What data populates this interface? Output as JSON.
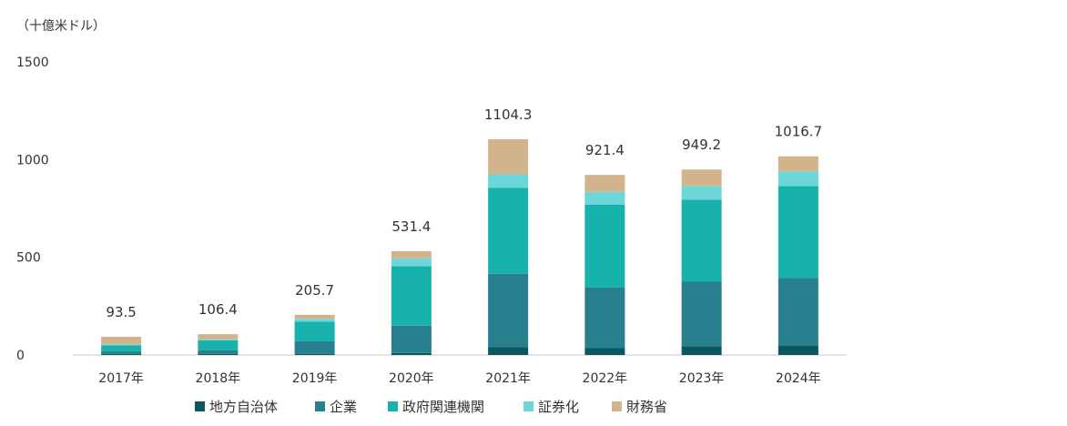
{
  "chart_data": {
    "type": "bar",
    "stacked": true,
    "unit_label": "（十億米ドル）",
    "categories": [
      "2017年",
      "2018年",
      "2019年",
      "2020年",
      "2021年",
      "2022年",
      "2023年",
      "2024年"
    ],
    "totals": [
      "93.5",
      "106.4",
      "205.7",
      "531.4",
      "1104.3",
      "921.4",
      "949.2",
      "1016.7"
    ],
    "series": [
      {
        "name": "地方自治体",
        "color": "#0c5660",
        "values": [
          5,
          5,
          5,
          10,
          40,
          35,
          45,
          50
        ]
      },
      {
        "name": "企業",
        "color": "#287f8e",
        "values": [
          15,
          20,
          65,
          140,
          375,
          310,
          330,
          345
        ]
      },
      {
        "name": "政府関連機関",
        "color": "#17b2ab",
        "values": [
          30,
          50,
          100,
          305,
          440,
          425,
          420,
          470
        ]
      },
      {
        "name": "証券化",
        "color": "#6cd6d8",
        "values": [
          5,
          5,
          15,
          40,
          70,
          65,
          70,
          75
        ]
      },
      {
        "name": "財務省",
        "color": "#d3b38b",
        "values": [
          38.5,
          26.4,
          20.7,
          36.4,
          179.3,
          86.4,
          84.2,
          76.7
        ]
      }
    ],
    "ylim": [
      0,
      1500
    ],
    "yticks": [
      0,
      500,
      1000,
      1500
    ],
    "grid": false,
    "legend_position": "bottom"
  }
}
